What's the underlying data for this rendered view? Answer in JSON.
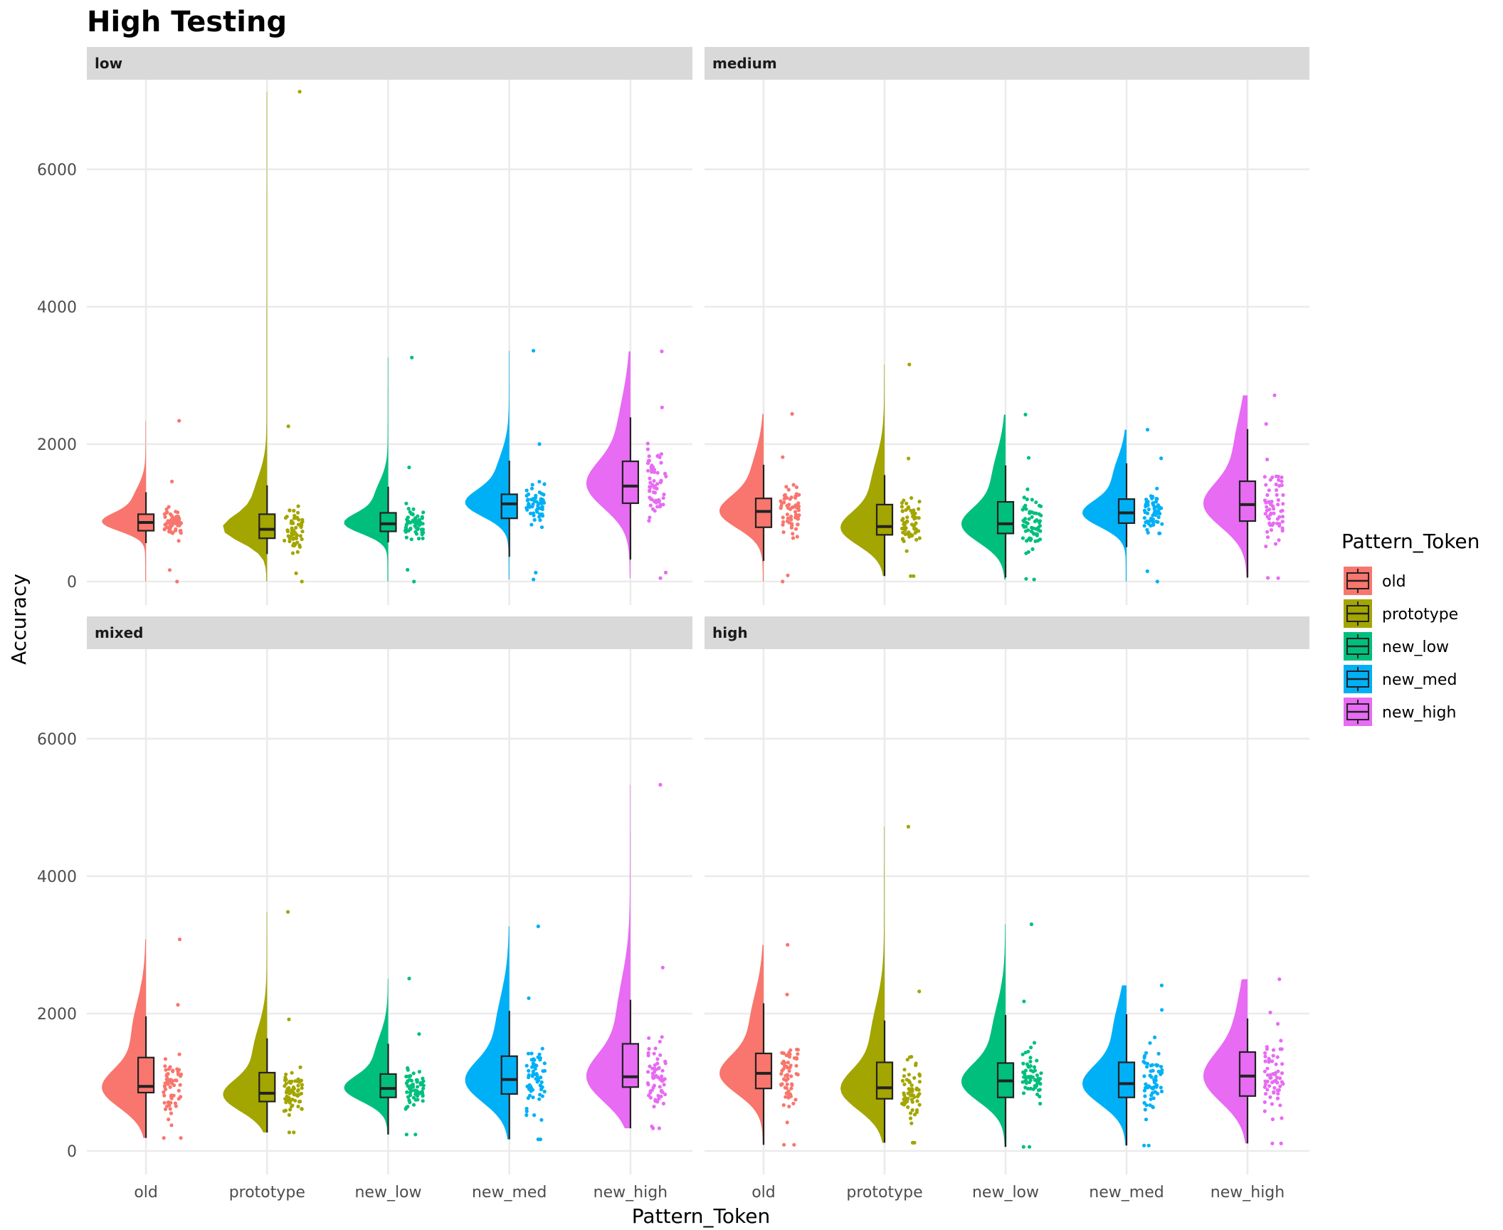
{
  "chart_data": {
    "type": "raincloud",
    "title": "High Testing",
    "xlabel": "Pattern_Token",
    "ylabel": "Accuracy",
    "ylim": [
      0,
      7200
    ],
    "y_ticks": [
      0,
      2000,
      4000,
      6000
    ],
    "categories": [
      "old",
      "prototype",
      "new_low",
      "new_med",
      "new_high"
    ],
    "colors": {
      "old": "#F8766D",
      "prototype": "#A3A500",
      "new_low": "#00BF7D",
      "new_med": "#00B0F6",
      "new_high": "#E76BF3"
    },
    "legend": {
      "title": "Pattern_Token",
      "position": "right",
      "entries": [
        "old",
        "prototype",
        "new_low",
        "new_med",
        "new_high"
      ]
    },
    "panel_rows": 2,
    "panel_cols": 2,
    "panels": [
      {
        "label": "low",
        "groups": [
          {
            "name": "old",
            "min": 0,
            "q1": 740,
            "median": 860,
            "q3": 980,
            "whisker_low": 560,
            "whisker_high": 1300,
            "max": 2340,
            "mode": 860
          },
          {
            "name": "prototype",
            "min": 0,
            "q1": 630,
            "median": 760,
            "q3": 980,
            "whisker_low": 400,
            "whisker_high": 1400,
            "max": 7130,
            "mode": 760
          },
          {
            "name": "new_low",
            "min": 0,
            "q1": 730,
            "median": 840,
            "q3": 1000,
            "whisker_low": 570,
            "whisker_high": 1380,
            "max": 3260,
            "mode": 840
          },
          {
            "name": "new_med",
            "min": 30,
            "q1": 920,
            "median": 1130,
            "q3": 1270,
            "whisker_low": 360,
            "whisker_high": 1760,
            "max": 3360,
            "mode": 1130
          },
          {
            "name": "new_high",
            "min": 50,
            "q1": 1140,
            "median": 1390,
            "q3": 1750,
            "whisker_low": 320,
            "whisker_high": 2390,
            "max": 3350,
            "mode": 1390
          }
        ]
      },
      {
        "label": "medium",
        "groups": [
          {
            "name": "old",
            "min": 0,
            "q1": 790,
            "median": 1020,
            "q3": 1210,
            "whisker_low": 300,
            "whisker_high": 1700,
            "max": 2440,
            "mode": 1000
          },
          {
            "name": "prototype",
            "min": 80,
            "q1": 680,
            "median": 800,
            "q3": 1120,
            "whisker_low": 80,
            "whisker_high": 1550,
            "max": 3160,
            "mode": 760
          },
          {
            "name": "new_low",
            "min": 30,
            "q1": 700,
            "median": 840,
            "q3": 1160,
            "whisker_low": 60,
            "whisker_high": 1690,
            "max": 2430,
            "mode": 810
          },
          {
            "name": "new_med",
            "min": 0,
            "q1": 850,
            "median": 1000,
            "q3": 1200,
            "whisker_low": 500,
            "whisker_high": 1720,
            "max": 2210,
            "mode": 980
          },
          {
            "name": "new_high",
            "min": 50,
            "q1": 880,
            "median": 1120,
            "q3": 1460,
            "whisker_low": 60,
            "whisker_high": 2220,
            "max": 2710,
            "mode": 1100
          }
        ]
      },
      {
        "label": "mixed",
        "groups": [
          {
            "name": "old",
            "min": 190,
            "q1": 850,
            "median": 940,
            "q3": 1360,
            "whisker_low": 190,
            "whisker_high": 1960,
            "max": 3080,
            "mode": 900
          },
          {
            "name": "prototype",
            "min": 270,
            "q1": 720,
            "median": 840,
            "q3": 1140,
            "whisker_low": 270,
            "whisker_high": 1640,
            "max": 3480,
            "mode": 800
          },
          {
            "name": "new_low",
            "min": 240,
            "q1": 780,
            "median": 910,
            "q3": 1120,
            "whisker_low": 240,
            "whisker_high": 1560,
            "max": 2510,
            "mode": 900
          },
          {
            "name": "new_med",
            "min": 170,
            "q1": 830,
            "median": 1040,
            "q3": 1380,
            "whisker_low": 170,
            "whisker_high": 2040,
            "max": 3270,
            "mode": 1000
          },
          {
            "name": "new_high",
            "min": 330,
            "q1": 930,
            "median": 1080,
            "q3": 1560,
            "whisker_low": 330,
            "whisker_high": 2200,
            "max": 5330,
            "mode": 1050
          }
        ]
      },
      {
        "label": "high",
        "groups": [
          {
            "name": "old",
            "min": 90,
            "q1": 910,
            "median": 1130,
            "q3": 1420,
            "whisker_low": 90,
            "whisker_high": 2150,
            "max": 3000,
            "mode": 1100
          },
          {
            "name": "prototype",
            "min": 120,
            "q1": 760,
            "median": 920,
            "q3": 1290,
            "whisker_low": 120,
            "whisker_high": 1900,
            "max": 4720,
            "mode": 880
          },
          {
            "name": "new_low",
            "min": 60,
            "q1": 780,
            "median": 1020,
            "q3": 1280,
            "whisker_low": 60,
            "whisker_high": 1980,
            "max": 3300,
            "mode": 980
          },
          {
            "name": "new_med",
            "min": 80,
            "q1": 780,
            "median": 980,
            "q3": 1290,
            "whisker_low": 80,
            "whisker_high": 1990,
            "max": 2410,
            "mode": 950
          },
          {
            "name": "new_high",
            "min": 110,
            "q1": 800,
            "median": 1090,
            "q3": 1440,
            "whisker_low": 110,
            "whisker_high": 1930,
            "max": 2500,
            "mode": 1050
          }
        ]
      }
    ]
  }
}
